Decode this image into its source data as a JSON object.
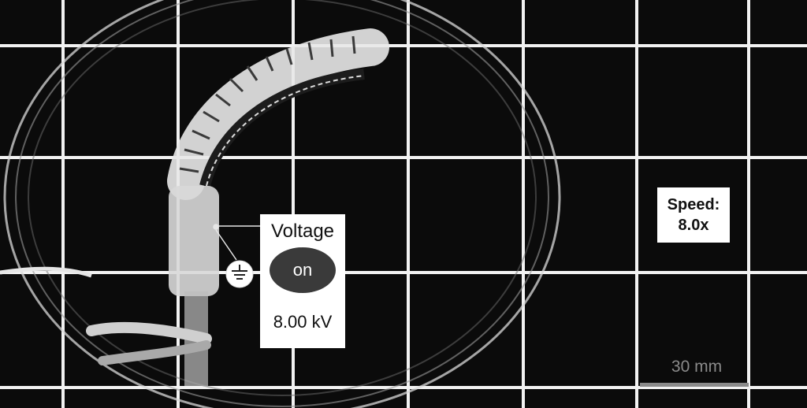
{
  "voltage_panel": {
    "title": "Voltage",
    "switch_state": "on",
    "value": "8.00 kV"
  },
  "speed_panel": {
    "line1": "Speed:",
    "line2": "8.0x"
  },
  "scale_bar": {
    "label": "30 mm"
  },
  "icons": {
    "ground": "ground-symbol-icon"
  },
  "colors": {
    "background": "#0b0b0b",
    "grid": "#f2f2f2",
    "switch": "#3a3a3a",
    "scale": "#8a8a8a"
  }
}
